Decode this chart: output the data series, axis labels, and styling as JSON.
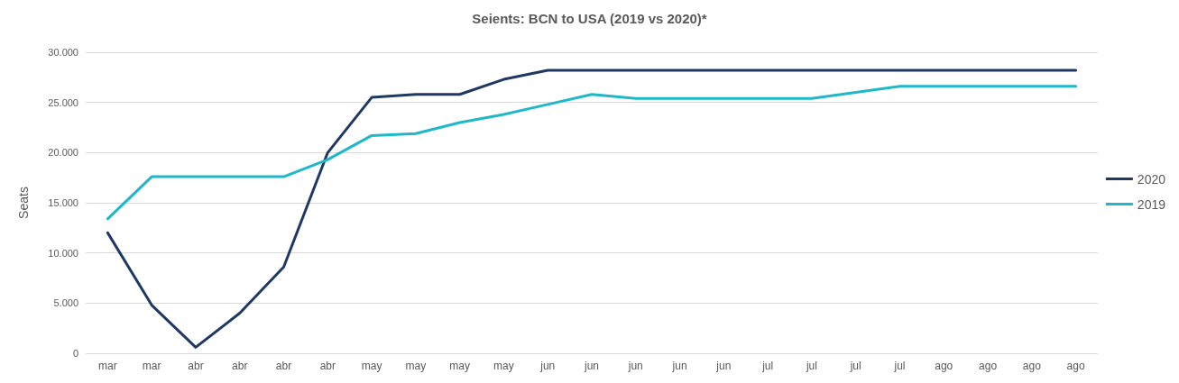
{
  "chart_data": {
    "type": "line",
    "title": "Seients: BCN to USA (2019 vs 2020)*",
    "ylabel": "Seats",
    "categories": [
      "mar",
      "mar",
      "abr",
      "abr",
      "abr",
      "abr",
      "may",
      "may",
      "may",
      "may",
      "jun",
      "jun",
      "jun",
      "jun",
      "jun",
      "jul",
      "jul",
      "jul",
      "jul",
      "ago",
      "ago",
      "ago",
      "ago"
    ],
    "series": [
      {
        "name": "2020",
        "color": "#1f3864",
        "values": [
          12000,
          4800,
          600,
          4000,
          8600,
          20000,
          25500,
          25800,
          25800,
          27300,
          28200,
          28200,
          28200,
          28200,
          28200,
          28200,
          28200,
          28200,
          28200,
          28200,
          28200,
          28200,
          28200
        ]
      },
      {
        "name": "2019",
        "color": "#1fb8c8",
        "values": [
          13400,
          17600,
          17600,
          17600,
          17600,
          19300,
          21700,
          21900,
          23000,
          23800,
          24800,
          25800,
          25400,
          25400,
          25400,
          25400,
          25400,
          26000,
          26600,
          26600,
          26600,
          26600,
          26600
        ]
      }
    ],
    "ylim": [
      0,
      30000
    ],
    "yticks": [
      {
        "value": 0,
        "label": "0"
      },
      {
        "value": 5000,
        "label": "5.000"
      },
      {
        "value": 10000,
        "label": "10.000"
      },
      {
        "value": 15000,
        "label": "15.000"
      },
      {
        "value": 20000,
        "label": "20.000"
      },
      {
        "value": 25000,
        "label": "25.000"
      },
      {
        "value": 30000,
        "label": "30.000"
      }
    ],
    "grid": "y",
    "legend": "right",
    "marker": "none",
    "line_style": "solid"
  }
}
